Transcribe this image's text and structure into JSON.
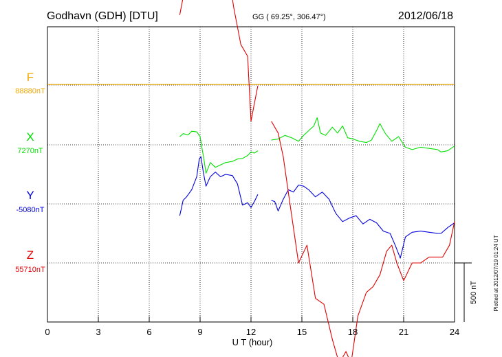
{
  "header": {
    "station": "Godhavn (GDH)  [DTU]",
    "coords": "GG ( 69.25°, 306.47°)",
    "date": "2012/06/18"
  },
  "plotted_note": "Plotted at 2012/07/19 01:24  UT",
  "colors": {
    "F": "#f0a800",
    "X": "#00e000",
    "Y": "#0000dd",
    "Z": "#e00000"
  },
  "chart_data": {
    "type": "line",
    "xlabel": "U T (hour)",
    "xlim": [
      0,
      24
    ],
    "xticks": [
      0,
      3,
      6,
      9,
      12,
      15,
      18,
      21,
      24
    ],
    "scale_bar": {
      "label": "500 nT",
      "value": 500
    },
    "series": [
      {
        "name": "F",
        "baseline_label": "88880nT",
        "baseline": 88880,
        "x": [],
        "y": []
      },
      {
        "name": "X",
        "baseline_label": "7270nT",
        "baseline": 7270,
        "x": [
          7.8,
          8.0,
          8.3,
          8.5,
          8.8,
          9.0,
          9.1,
          9.2,
          9.35,
          9.6,
          9.9,
          10.2,
          10.5,
          10.9,
          11.2,
          11.5,
          11.8,
          12.0,
          12.2,
          12.4,
          13.2,
          13.6,
          14.0,
          14.4,
          14.8,
          15.1,
          15.4,
          15.7,
          15.9,
          16.1,
          16.4,
          16.8,
          17.1,
          17.4,
          17.7,
          18.0,
          18.4,
          18.8,
          19.1,
          19.4,
          19.6,
          19.9,
          20.3,
          20.7,
          21.1,
          21.5,
          22.0,
          22.5,
          23.0,
          23.2,
          23.6,
          24.0
        ],
        "y": [
          70,
          95,
          85,
          115,
          110,
          70,
          -20,
          -100,
          -240,
          -150,
          -190,
          -170,
          -150,
          -140,
          -120,
          -115,
          -90,
          -60,
          -70,
          -50,
          40,
          50,
          80,
          60,
          30,
          80,
          120,
          160,
          230,
          100,
          80,
          150,
          100,
          160,
          60,
          50,
          30,
          20,
          40,
          120,
          180,
          100,
          30,
          70,
          -20,
          -40,
          -20,
          -30,
          -40,
          -60,
          -50,
          -10
        ]
      },
      {
        "name": "Y",
        "baseline_label": "-5080nT",
        "baseline": -5080,
        "x": [
          7.8,
          8.0,
          8.2,
          8.5,
          8.8,
          8.95,
          9.05,
          9.2,
          9.35,
          9.6,
          9.9,
          10.2,
          10.5,
          10.9,
          11.2,
          11.5,
          11.8,
          12.0,
          12.2,
          12.4,
          13.2,
          13.4,
          13.6,
          13.9,
          14.2,
          14.5,
          14.8,
          15.1,
          15.4,
          15.8,
          16.2,
          16.6,
          17.0,
          17.4,
          17.8,
          18.2,
          18.6,
          19.0,
          19.4,
          19.8,
          20.2,
          20.5,
          20.8,
          21.1,
          21.5,
          22.0,
          22.5,
          23.0,
          23.2,
          23.6,
          24.0
        ],
        "y": [
          -100,
          30,
          60,
          120,
          230,
          380,
          400,
          260,
          150,
          230,
          270,
          230,
          250,
          240,
          170,
          -10,
          10,
          -30,
          20,
          80,
          30,
          20,
          -60,
          40,
          120,
          100,
          160,
          150,
          120,
          60,
          100,
          40,
          -80,
          -150,
          -120,
          -100,
          -170,
          -130,
          -160,
          -230,
          -250,
          -350,
          -460,
          -280,
          -240,
          -230,
          -240,
          -250,
          -250,
          -200,
          -160
        ]
      },
      {
        "name": "Z",
        "baseline_label": "55710nT",
        "baseline": 55710,
        "x": [
          7.8,
          8.0,
          8.3,
          8.6,
          8.9,
          9.05,
          9.2,
          9.4,
          9.8,
          10.2,
          10.6,
          11.0,
          11.4,
          11.8,
          12.0,
          12.2,
          12.4,
          13.2,
          13.6,
          13.9,
          14.3,
          14.8,
          15.3,
          15.8,
          16.3,
          16.8,
          17.2,
          17.6,
          17.9,
          18.3,
          18.8,
          19.2,
          19.6,
          20.0,
          20.3,
          20.6,
          21.0,
          21.5,
          22.0,
          22.5,
          23.0,
          23.3,
          23.7,
          24.0
        ],
        "y": [
          2100,
          2250,
          2350,
          2800,
          3100,
          3300,
          3050,
          2750,
          2700,
          2600,
          2500,
          2150,
          1850,
          1750,
          1200,
          1350,
          1500,
          1200,
          1100,
          900,
          500,
          0,
          150,
          -300,
          -350,
          -650,
          -850,
          -750,
          -850,
          -450,
          -250,
          -200,
          -100,
          100,
          150,
          0,
          -150,
          0,
          0,
          50,
          50,
          50,
          150,
          350
        ]
      }
    ]
  }
}
